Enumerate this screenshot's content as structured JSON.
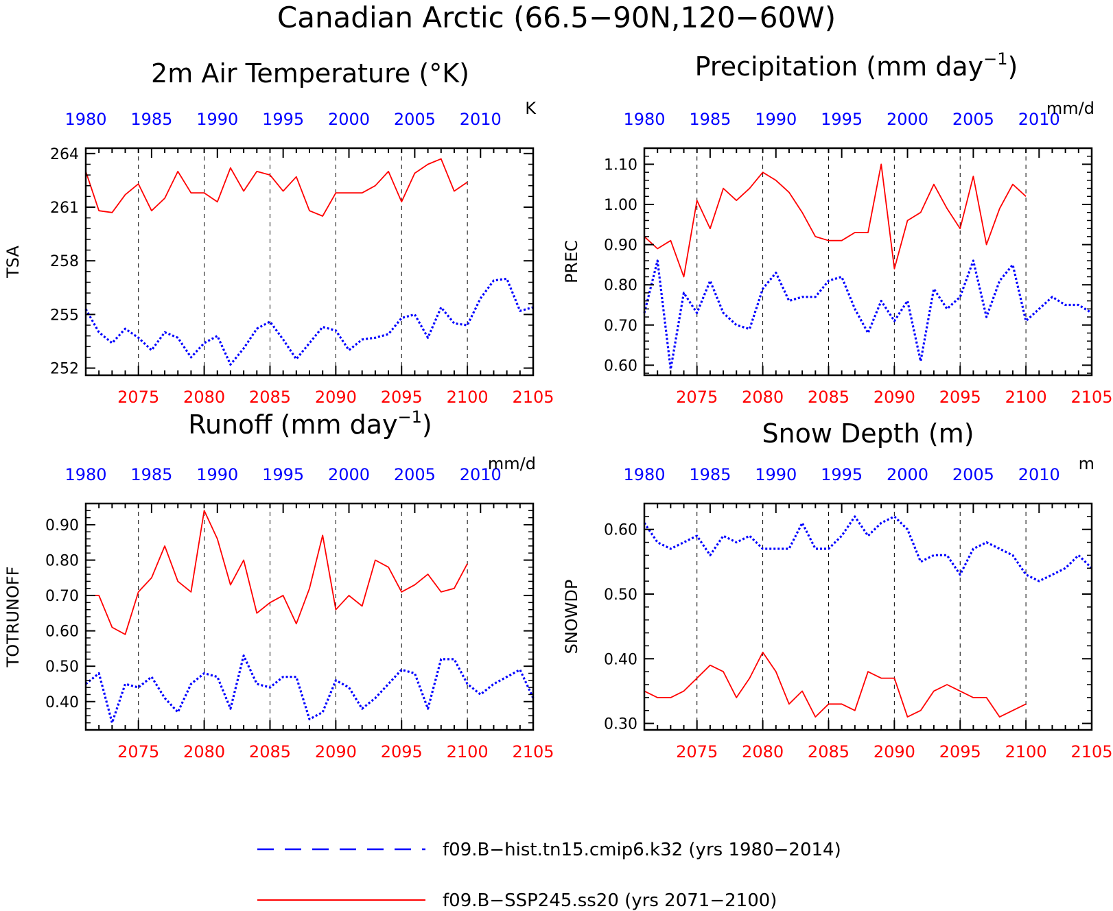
{
  "figure": {
    "title": "Canadian Arctic (66.5−90N,120−60W)"
  },
  "colors": {
    "hist": "#0000ff",
    "future": "#ff0000",
    "axis": "#000000"
  },
  "axes": {
    "top_label_color": "blue",
    "bottom_label_color": "red",
    "top_x_range": [
      1980,
      2014
    ],
    "top_x_ticks": [
      "1980",
      "1985",
      "1990",
      "1995",
      "2000",
      "2005",
      "2010"
    ],
    "bottom_x_range": [
      2071,
      2105
    ],
    "bottom_x_ticks": [
      "2075",
      "2080",
      "2085",
      "2090",
      "2095",
      "2100",
      "2105"
    ],
    "dashed_gridlines_at": [
      2075,
      2080,
      2085,
      2090,
      2095,
      2100
    ]
  },
  "legend": {
    "hist_label": "f09.B−hist.tn15.cmip6.k32 (yrs 1980−2014)",
    "future_label": "f09.B−SSP245.ss20 (yrs 2071−2100)"
  },
  "chart_data": [
    {
      "type": "line",
      "title": "2m Air Temperature (°K)",
      "ylabel": "TSA",
      "units": "K",
      "ylim": [
        251.6,
        264.3
      ],
      "yticks": [
        252,
        255,
        258,
        261,
        264
      ],
      "ytick_labels": [
        "252",
        "255",
        "258",
        "261",
        "264"
      ],
      "series": [
        {
          "name": "f09.B−hist.tn15.cmip6.k32 (yrs 1980−2014)",
          "start_year": 1980,
          "values": [
            255.3,
            254.0,
            253.4,
            254.2,
            253.7,
            253.0,
            254.0,
            253.7,
            252.6,
            253.4,
            253.8,
            252.2,
            253.1,
            254.2,
            254.6,
            253.6,
            252.5,
            253.4,
            254.3,
            254.1,
            253.0,
            253.6,
            253.7,
            253.9,
            254.8,
            255.0,
            253.7,
            255.4,
            254.5,
            254.4,
            255.9,
            256.9,
            257.0,
            255.2,
            255.4
          ]
        },
        {
          "name": "f09.B−SSP245.ss20 (yrs 2071−2100)",
          "start_year": 2071,
          "values": [
            263.0,
            260.8,
            260.7,
            261.7,
            262.3,
            260.8,
            261.5,
            263.0,
            261.8,
            261.8,
            261.3,
            263.2,
            261.9,
            263.0,
            262.8,
            261.9,
            262.7,
            260.8,
            260.5,
            261.8,
            261.8,
            261.8,
            262.2,
            263.0,
            261.3,
            262.9,
            263.4,
            263.7,
            261.9,
            262.4
          ]
        }
      ]
    },
    {
      "type": "line",
      "title": "Precipitation (mm day⁻¹)",
      "ylabel": "PREC",
      "units": "mm/d",
      "ylim": [
        0.575,
        1.14
      ],
      "yticks": [
        0.6,
        0.7,
        0.8,
        0.9,
        1.0,
        1.1
      ],
      "ytick_labels": [
        "0.60",
        "0.70",
        "0.80",
        "0.90",
        "1.00",
        "1.10"
      ],
      "series": [
        {
          "name": "f09.B−hist.tn15.cmip6.k32 (yrs 1980−2014)",
          "start_year": 1980,
          "values": [
            0.73,
            0.86,
            0.59,
            0.78,
            0.73,
            0.81,
            0.73,
            0.7,
            0.69,
            0.79,
            0.83,
            0.76,
            0.77,
            0.77,
            0.81,
            0.82,
            0.74,
            0.68,
            0.76,
            0.71,
            0.76,
            0.61,
            0.79,
            0.74,
            0.77,
            0.86,
            0.72,
            0.81,
            0.85,
            0.71,
            0.74,
            0.77,
            0.75,
            0.75,
            0.73
          ]
        },
        {
          "name": "f09.B−SSP245.ss20 (yrs 2071−2100)",
          "start_year": 2071,
          "values": [
            0.92,
            0.89,
            0.91,
            0.82,
            1.01,
            0.94,
            1.04,
            1.01,
            1.04,
            1.08,
            1.06,
            1.03,
            0.98,
            0.92,
            0.91,
            0.91,
            0.93,
            0.93,
            1.1,
            0.84,
            0.96,
            0.98,
            1.05,
            0.99,
            0.94,
            1.07,
            0.9,
            0.99,
            1.05,
            1.02
          ]
        }
      ]
    },
    {
      "type": "line",
      "title": "Runoff (mm day⁻¹)",
      "ylabel": "TOTRUNOFF",
      "units": "mm/d",
      "ylim": [
        0.32,
        0.96
      ],
      "yticks": [
        0.4,
        0.5,
        0.6,
        0.7,
        0.8,
        0.9
      ],
      "ytick_labels": [
        "0.40",
        "0.50",
        "0.60",
        "0.70",
        "0.80",
        "0.90"
      ],
      "series": [
        {
          "name": "f09.B−hist.tn15.cmip6.k32 (yrs 1980−2014)",
          "start_year": 1980,
          "values": [
            0.45,
            0.48,
            0.34,
            0.45,
            0.44,
            0.47,
            0.41,
            0.37,
            0.45,
            0.48,
            0.47,
            0.38,
            0.53,
            0.45,
            0.44,
            0.47,
            0.47,
            0.35,
            0.37,
            0.46,
            0.44,
            0.38,
            0.41,
            0.45,
            0.49,
            0.48,
            0.38,
            0.52,
            0.52,
            0.45,
            0.42,
            0.45,
            0.47,
            0.49,
            0.41
          ]
        },
        {
          "name": "f09.B−SSP245.ss20 (yrs 2071−2100)",
          "start_year": 2071,
          "values": [
            0.7,
            0.7,
            0.61,
            0.59,
            0.71,
            0.75,
            0.84,
            0.74,
            0.71,
            0.94,
            0.86,
            0.73,
            0.8,
            0.65,
            0.68,
            0.7,
            0.62,
            0.72,
            0.87,
            0.66,
            0.7,
            0.67,
            0.8,
            0.78,
            0.71,
            0.73,
            0.76,
            0.71,
            0.72,
            0.79
          ]
        }
      ]
    },
    {
      "type": "line",
      "title": "Snow Depth (m)",
      "ylabel": "SNOWDP",
      "units": "m",
      "ylim": [
        0.29,
        0.64
      ],
      "yticks": [
        0.3,
        0.4,
        0.5,
        0.6
      ],
      "ytick_labels": [
        "0.30",
        "0.40",
        "0.50",
        "0.60"
      ],
      "series": [
        {
          "name": "f09.B−hist.tn15.cmip6.k32 (yrs 1980−2014)",
          "start_year": 1980,
          "values": [
            0.61,
            0.58,
            0.57,
            0.58,
            0.59,
            0.56,
            0.59,
            0.58,
            0.59,
            0.57,
            0.57,
            0.57,
            0.61,
            0.57,
            0.57,
            0.59,
            0.62,
            0.59,
            0.61,
            0.62,
            0.6,
            0.55,
            0.56,
            0.56,
            0.53,
            0.57,
            0.58,
            0.57,
            0.56,
            0.53,
            0.52,
            0.53,
            0.54,
            0.56,
            0.54
          ]
        },
        {
          "name": "f09.B−SSP245.ss20 (yrs 2071−2100)",
          "start_year": 2071,
          "values": [
            0.35,
            0.34,
            0.34,
            0.35,
            0.37,
            0.39,
            0.38,
            0.34,
            0.37,
            0.41,
            0.38,
            0.33,
            0.35,
            0.31,
            0.33,
            0.33,
            0.32,
            0.38,
            0.37,
            0.37,
            0.31,
            0.32,
            0.35,
            0.36,
            0.35,
            0.34,
            0.34,
            0.31,
            0.32,
            0.33
          ]
        }
      ]
    }
  ]
}
